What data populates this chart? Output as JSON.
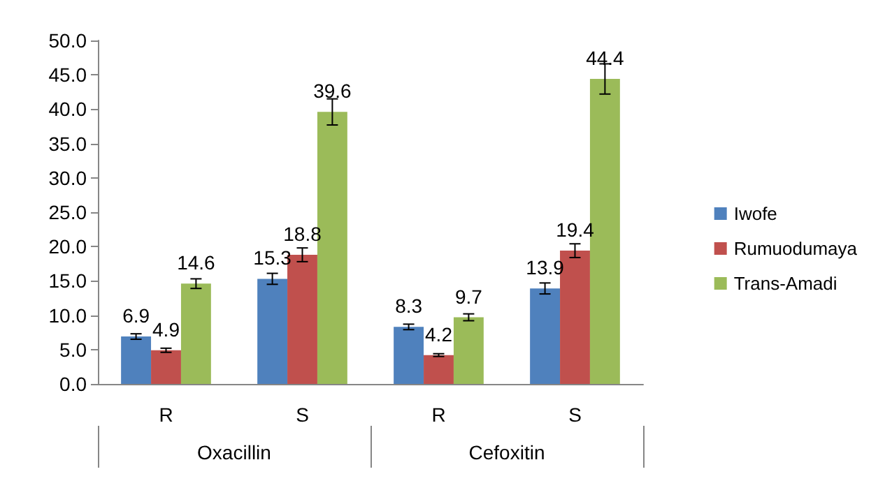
{
  "chart_data": {
    "type": "bar",
    "categories": [
      "R",
      "S",
      "R",
      "S"
    ],
    "annotations": [
      "Oxacillin",
      "Cefoxitin"
    ],
    "series": [
      {
        "name": "Iwofe",
        "color": "#4f81bd",
        "values": [
          6.9,
          15.3,
          8.3,
          13.9
        ],
        "errors": [
          0.4,
          0.8,
          0.4,
          0.8
        ]
      },
      {
        "name": "Rumuodumaya",
        "color": "#c0504d",
        "values": [
          4.9,
          18.8,
          4.2,
          19.4
        ],
        "errors": [
          0.3,
          1.0,
          0.2,
          1.0
        ]
      },
      {
        "name": "Trans-Amadi",
        "color": "#9bbb59",
        "values": [
          14.6,
          39.6,
          9.7,
          44.4
        ],
        "errors": [
          0.7,
          1.9,
          0.5,
          2.2
        ]
      }
    ],
    "ylim": [
      0,
      50
    ],
    "yticks": [
      {
        "value": 0,
        "label": "0.0"
      },
      {
        "value": 5,
        "label": "5.0"
      },
      {
        "value": 10,
        "label": "10.0"
      },
      {
        "value": 15,
        "label": "15.0"
      },
      {
        "value": 20,
        "label": "20.0"
      },
      {
        "value": 25,
        "label": "25.0"
      },
      {
        "value": 30,
        "label": "30.0"
      },
      {
        "value": 35,
        "label": "35.0"
      },
      {
        "value": 40,
        "label": "40.0"
      },
      {
        "value": 45,
        "label": "45.0"
      },
      {
        "value": 50,
        "label": "50.0"
      }
    ],
    "data_labels": true,
    "grid": false,
    "legend": "right"
  }
}
